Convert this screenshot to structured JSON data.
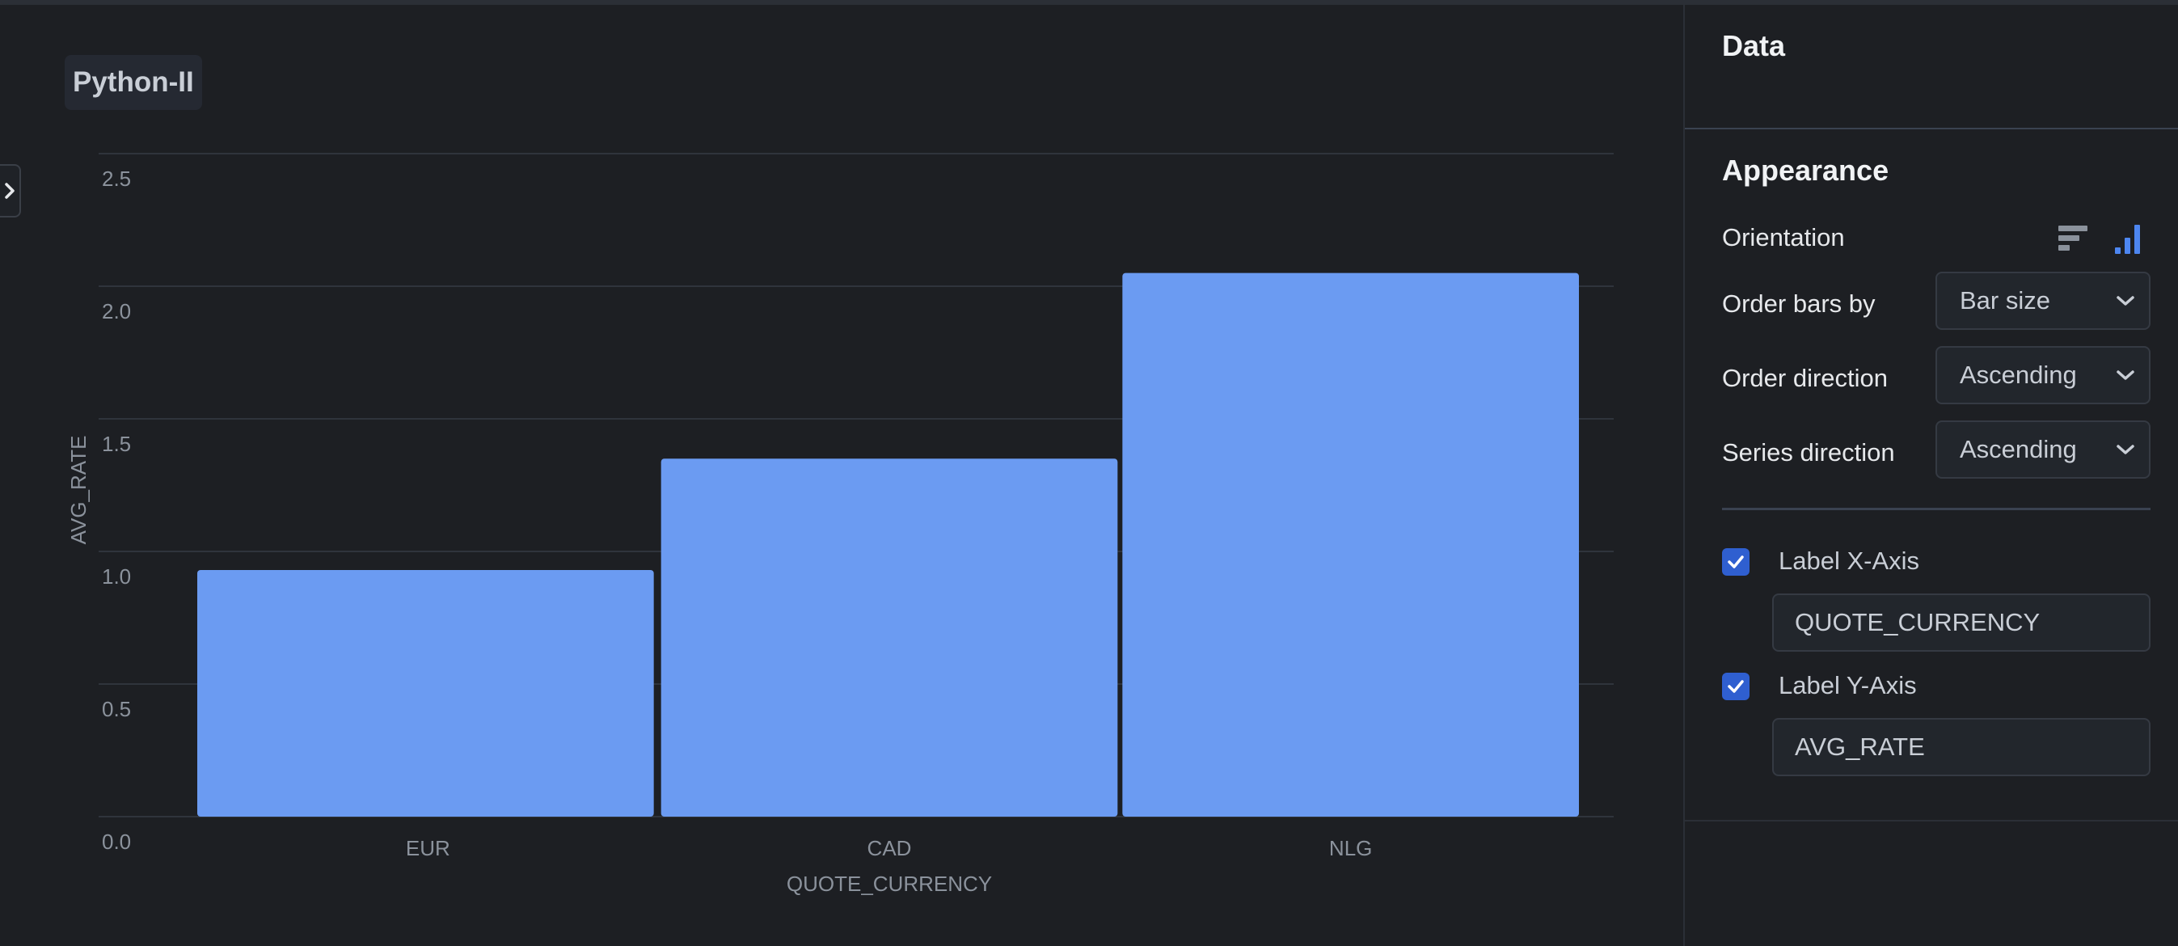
{
  "chart_title": "Python-II",
  "chart_data": {
    "type": "bar",
    "categories": [
      "EUR",
      "CAD",
      "NLG"
    ],
    "values": [
      0.93,
      1.35,
      2.05
    ],
    "xlabel": "QUOTE_CURRENCY",
    "ylabel": "AVG_RATE",
    "ylim": [
      0,
      2.5
    ],
    "yticks": [
      "0.0",
      "0.5",
      "1.0",
      "1.5",
      "2.0",
      "2.5"
    ],
    "grid": true,
    "bar_color": "#6b9bf2"
  },
  "panel": {
    "data_heading": "Data",
    "appearance_heading": "Appearance",
    "orientation_label": "Orientation",
    "order_bars_label": "Order bars by",
    "order_bars_value": "Bar size",
    "order_direction_label": "Order direction",
    "order_direction_value": "Ascending",
    "series_direction_label": "Series direction",
    "series_direction_value": "Ascending",
    "label_x_text": "Label X-Axis",
    "label_x_value": "QUOTE_CURRENCY",
    "label_y_text": "Label Y-Axis",
    "label_y_value": "AVG_RATE"
  },
  "colors": {
    "background": "#1d1f23",
    "accent": "#6b9bf2",
    "checkbox": "#2f5fd0"
  }
}
